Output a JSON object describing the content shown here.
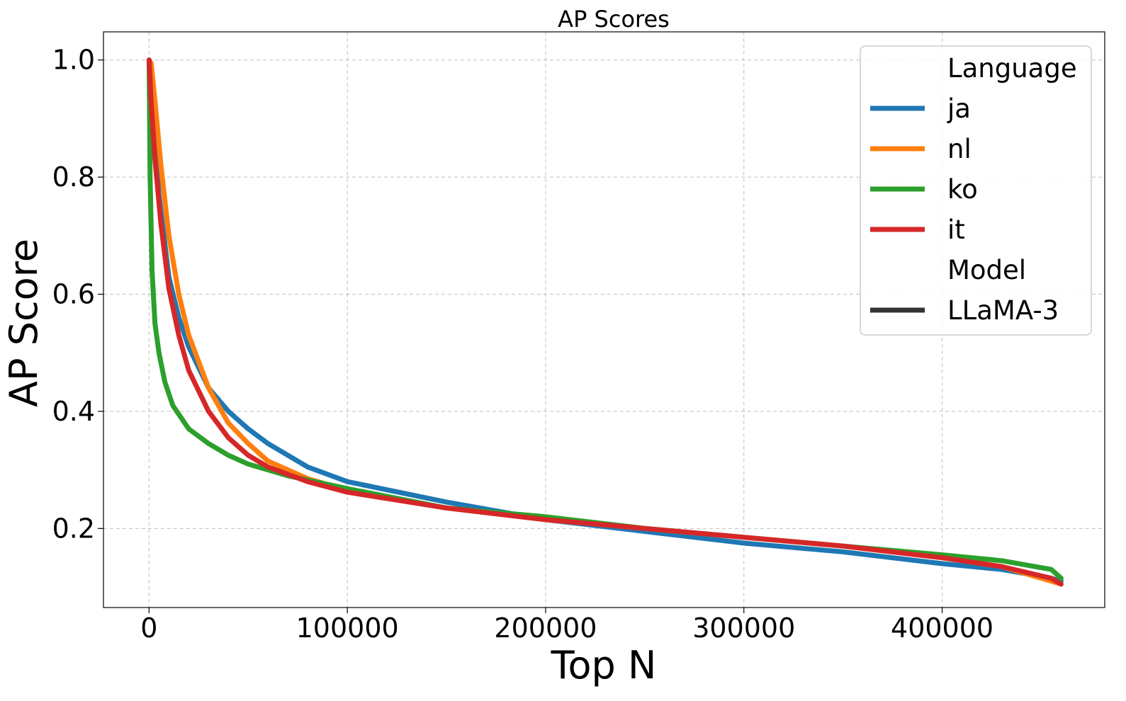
{
  "chart_data": {
    "type": "line",
    "title": "AP Scores",
    "xlabel": "Top N",
    "ylabel": "AP Score",
    "xlim": [
      -23000,
      482000
    ],
    "ylim": [
      0.065,
      1.048
    ],
    "xticks": [
      0,
      100000,
      200000,
      300000,
      400000
    ],
    "xtick_labels": [
      "0",
      "100000",
      "200000",
      "300000",
      "400000"
    ],
    "yticks": [
      0.2,
      0.4,
      0.6,
      0.8,
      1.0
    ],
    "ytick_labels": [
      "0.2",
      "0.4",
      "0.6",
      "0.8",
      "1.0"
    ],
    "grid": true,
    "legend": {
      "placement": "top-right",
      "sections": [
        {
          "header": "Language",
          "entries": [
            {
              "label": "ja",
              "color": "#1f77b4"
            },
            {
              "label": "nl",
              "color": "#ff7f0e"
            },
            {
              "label": "ko",
              "color": "#2ca02c"
            },
            {
              "label": "it",
              "color": "#d62728"
            }
          ]
        },
        {
          "header": "Model",
          "entries": [
            {
              "label": "LLaMA-3",
              "color": "#333333"
            }
          ]
        }
      ]
    },
    "series": [
      {
        "name": "ja",
        "color": "#1f77b4",
        "x": [
          0,
          2000,
          5000,
          10000,
          15000,
          20000,
          30000,
          40000,
          50000,
          60000,
          80000,
          100000,
          150000,
          200000,
          250000,
          300000,
          350000,
          400000,
          430000,
          455000,
          460000
        ],
        "y": [
          1.0,
          0.9,
          0.77,
          0.63,
          0.56,
          0.51,
          0.44,
          0.4,
          0.37,
          0.345,
          0.305,
          0.28,
          0.245,
          0.215,
          0.195,
          0.175,
          0.16,
          0.14,
          0.13,
          0.115,
          0.11
        ]
      },
      {
        "name": "nl",
        "color": "#ff7f0e",
        "x": [
          0,
          1000,
          3000,
          6000,
          10000,
          15000,
          20000,
          30000,
          40000,
          50000,
          60000,
          80000,
          100000,
          150000,
          200000,
          250000,
          300000,
          350000,
          400000,
          430000,
          455000,
          460000
        ],
        "y": [
          1.0,
          0.995,
          0.93,
          0.82,
          0.7,
          0.6,
          0.53,
          0.44,
          0.38,
          0.345,
          0.315,
          0.285,
          0.265,
          0.235,
          0.215,
          0.2,
          0.185,
          0.17,
          0.15,
          0.135,
          0.11,
          0.105
        ]
      },
      {
        "name": "ko",
        "color": "#2ca02c",
        "x": [
          0,
          500,
          1500,
          3000,
          5000,
          8000,
          12000,
          20000,
          30000,
          40000,
          50000,
          70000,
          100000,
          150000,
          200000,
          250000,
          300000,
          350000,
          400000,
          430000,
          455000,
          460000
        ],
        "y": [
          1.0,
          0.8,
          0.64,
          0.55,
          0.5,
          0.45,
          0.41,
          0.37,
          0.345,
          0.325,
          0.31,
          0.29,
          0.268,
          0.235,
          0.22,
          0.2,
          0.185,
          0.17,
          0.155,
          0.145,
          0.13,
          0.115
        ]
      },
      {
        "name": "it",
        "color": "#d62728",
        "x": [
          0,
          1000,
          3000,
          6000,
          10000,
          15000,
          20000,
          30000,
          40000,
          50000,
          60000,
          80000,
          100000,
          150000,
          200000,
          250000,
          300000,
          350000,
          400000,
          430000,
          455000,
          460000
        ],
        "y": [
          1.0,
          0.93,
          0.83,
          0.72,
          0.61,
          0.53,
          0.47,
          0.4,
          0.355,
          0.325,
          0.305,
          0.28,
          0.262,
          0.235,
          0.215,
          0.2,
          0.185,
          0.17,
          0.15,
          0.135,
          0.115,
          0.105
        ]
      }
    ]
  }
}
